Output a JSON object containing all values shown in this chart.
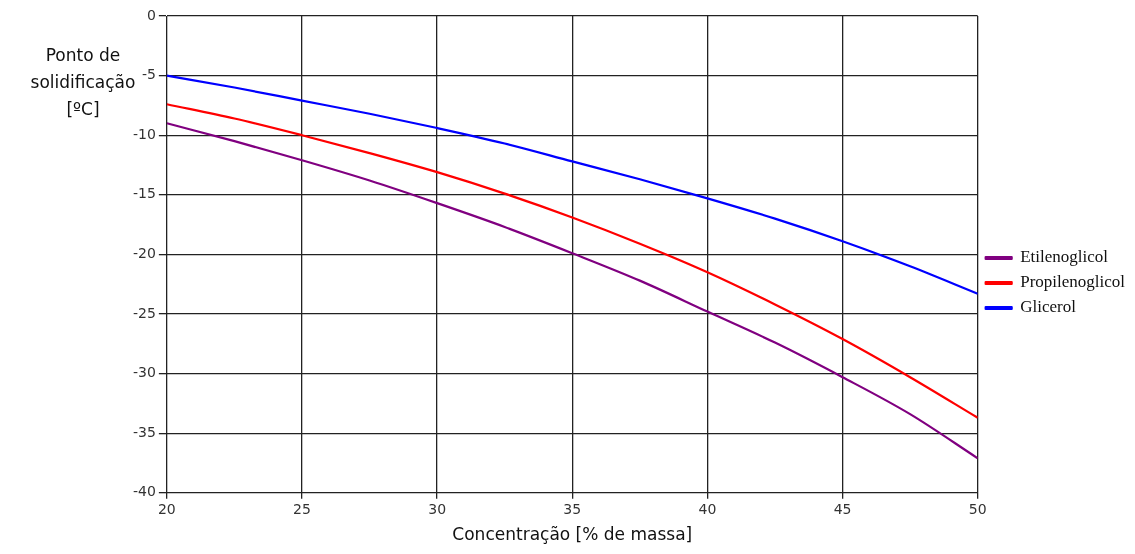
{
  "chart_data": {
    "type": "line",
    "xlabel": "Concentração [% de massa]",
    "ylabel": "Ponto de solidificação [ºC]",
    "x": [
      20,
      22.5,
      25,
      27.5,
      30,
      32.5,
      35,
      37.5,
      40,
      42.5,
      45,
      47.5,
      50
    ],
    "series": [
      {
        "name": "Etilenoglicol",
        "color": "#800080",
        "values": [
          -9,
          -10.5,
          -12.1,
          -13.8,
          -15.7,
          -17.7,
          -19.9,
          -22.2,
          -24.8,
          -27.4,
          -30.3,
          -33.4,
          -37.1
        ]
      },
      {
        "name": "Propilenoglicol",
        "color": "#ff0000",
        "values": [
          -7.4,
          -8.6,
          -10,
          -11.5,
          -13.1,
          -14.9,
          -16.9,
          -19.1,
          -21.5,
          -24.2,
          -27.1,
          -30.3,
          -33.7
        ]
      },
      {
        "name": "Glicerol",
        "color": "#0000ff",
        "values": [
          -5,
          -6,
          -7.1,
          -8.2,
          -9.4,
          -10.7,
          -12.2,
          -13.7,
          -15.3,
          -17.0,
          -18.9,
          -21.0,
          -23.3
        ]
      }
    ],
    "xlim": [
      20,
      50
    ],
    "xticks": [
      20,
      25,
      30,
      35,
      40,
      45,
      50
    ],
    "ylim": [
      -40,
      0
    ],
    "yticks": [
      -40,
      -35,
      -30,
      -25,
      -20,
      -15,
      -10,
      -5,
      0
    ],
    "grid": true,
    "legend": "right",
    "marker": "none",
    "line_style": "solid"
  }
}
